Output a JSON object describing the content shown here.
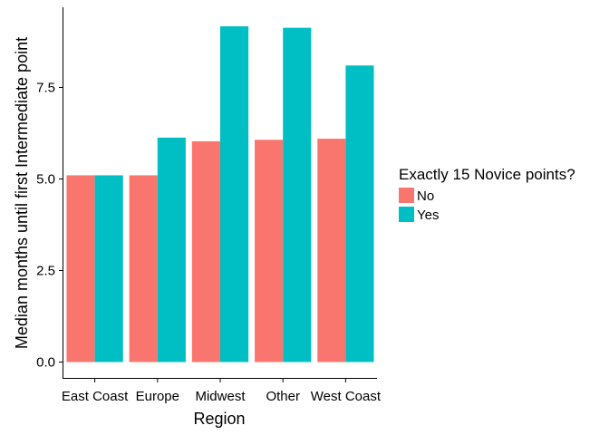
{
  "chart_data": {
    "type": "bar",
    "categories": [
      "East Coast",
      "Europe",
      "Midwest",
      "Other",
      "West Coast"
    ],
    "series": [
      {
        "name": "No",
        "color": "#F8766D",
        "values": [
          5.1,
          5.1,
          6.03,
          6.07,
          6.1
        ]
      },
      {
        "name": "Yes",
        "color": "#00BFC4",
        "values": [
          5.1,
          6.13,
          9.17,
          9.13,
          8.1
        ]
      }
    ],
    "xlabel": "Region",
    "ylabel": "Median months until first Intermediate point",
    "ylim": [
      0,
      9.6
    ],
    "yticks": [
      "0.0",
      "2.5",
      "5.0",
      "7.5"
    ],
    "ytick_values": [
      0,
      2.5,
      5.0,
      7.5
    ],
    "legend": {
      "title": "Exactly 15 Novice points?",
      "position": "right"
    },
    "grid": false
  }
}
